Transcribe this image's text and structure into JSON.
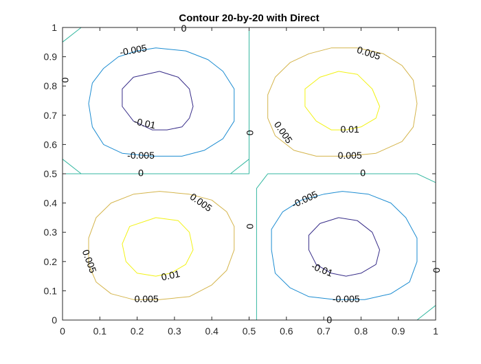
{
  "chart_data": {
    "type": "contour",
    "title": "Contour 20-by-20 with Direct",
    "xlabel": "",
    "ylabel": "",
    "xlim": [
      0,
      1
    ],
    "ylim": [
      0,
      1
    ],
    "x_ticks": [
      0,
      0.1,
      0.2,
      0.3,
      0.4,
      0.5,
      0.6,
      0.7,
      0.8,
      0.9,
      1
    ],
    "y_ticks": [
      0,
      0.1,
      0.2,
      0.3,
      0.4,
      0.5,
      0.6,
      0.7,
      0.8,
      0.9,
      1
    ],
    "x_tick_labels": [
      "0",
      "0.1",
      "0.2",
      "0.3",
      "0.4",
      "0.5",
      "0.6",
      "0.7",
      "0.8",
      "0.9",
      "1"
    ],
    "y_tick_labels": [
      "0",
      "0.1",
      "0.2",
      "0.3",
      "0.4",
      "0.5",
      "0.6",
      "0.7",
      "0.8",
      "0.9",
      "1"
    ],
    "grid": false,
    "box": true,
    "levels": [
      -0.01,
      -0.005,
      0,
      0.005,
      0.01
    ],
    "level_colors": {
      "-0.01": "#352a87",
      "-0.005": "#1a8bd1",
      "0": "#33b7a0",
      "0.005": "#d4b44a",
      "0.01": "#f2f211"
    },
    "contours": [
      {
        "level": 0,
        "points": [
          [
            0.0,
            0.95
          ],
          [
            0.05,
            1.0
          ],
          [
            0.5,
            1.0
          ],
          [
            0.5,
            0.5
          ],
          [
            0.0,
            0.5
          ]
        ]
      },
      {
        "level": 0,
        "points": [
          [
            0.5,
            0.95
          ],
          [
            0.5,
            0.55
          ],
          [
            0.45,
            0.5
          ],
          [
            0.05,
            0.5
          ],
          [
            0.0,
            0.55
          ]
        ]
      },
      {
        "level": 0,
        "points": [
          [
            0.52,
            0.0
          ],
          [
            0.52,
            0.45
          ],
          [
            0.55,
            0.5
          ],
          [
            0.95,
            0.5
          ],
          [
            1.0,
            0.47
          ]
        ]
      },
      {
        "level": 0,
        "points": [
          [
            1.0,
            0.05
          ],
          [
            0.95,
            0.0
          ],
          [
            0.52,
            0.0
          ]
        ]
      },
      {
        "level": -0.005,
        "points": [
          [
            0.25,
            0.93
          ],
          [
            0.33,
            0.92
          ],
          [
            0.39,
            0.89
          ],
          [
            0.43,
            0.85
          ],
          [
            0.46,
            0.79
          ],
          [
            0.46,
            0.68
          ],
          [
            0.43,
            0.62
          ],
          [
            0.38,
            0.58
          ],
          [
            0.32,
            0.56
          ],
          [
            0.24,
            0.56
          ],
          [
            0.16,
            0.57
          ],
          [
            0.11,
            0.6
          ],
          [
            0.08,
            0.66
          ],
          [
            0.07,
            0.74
          ],
          [
            0.08,
            0.81
          ],
          [
            0.11,
            0.86
          ],
          [
            0.15,
            0.9
          ],
          [
            0.2,
            0.92
          ],
          [
            0.25,
            0.93
          ]
        ]
      },
      {
        "level": -0.01,
        "points": [
          [
            0.26,
            0.85
          ],
          [
            0.31,
            0.83
          ],
          [
            0.34,
            0.79
          ],
          [
            0.35,
            0.73
          ],
          [
            0.34,
            0.69
          ],
          [
            0.32,
            0.66
          ],
          [
            0.28,
            0.65
          ],
          [
            0.24,
            0.65
          ],
          [
            0.19,
            0.68
          ],
          [
            0.16,
            0.73
          ],
          [
            0.16,
            0.79
          ],
          [
            0.19,
            0.83
          ],
          [
            0.26,
            0.85
          ]
        ]
      },
      {
        "level": 0.005,
        "points": [
          [
            0.72,
            0.93
          ],
          [
            0.79,
            0.93
          ],
          [
            0.86,
            0.91
          ],
          [
            0.91,
            0.87
          ],
          [
            0.94,
            0.82
          ],
          [
            0.95,
            0.74
          ],
          [
            0.94,
            0.66
          ],
          [
            0.91,
            0.61
          ],
          [
            0.84,
            0.57
          ],
          [
            0.76,
            0.56
          ],
          [
            0.68,
            0.56
          ],
          [
            0.62,
            0.58
          ],
          [
            0.57,
            0.63
          ],
          [
            0.55,
            0.69
          ],
          [
            0.55,
            0.77
          ],
          [
            0.57,
            0.83
          ],
          [
            0.61,
            0.88
          ],
          [
            0.66,
            0.91
          ],
          [
            0.72,
            0.93
          ]
        ]
      },
      {
        "level": 0.01,
        "points": [
          [
            0.74,
            0.85
          ],
          [
            0.79,
            0.84
          ],
          [
            0.83,
            0.79
          ],
          [
            0.85,
            0.73
          ],
          [
            0.84,
            0.69
          ],
          [
            0.8,
            0.66
          ],
          [
            0.76,
            0.65
          ],
          [
            0.72,
            0.65
          ],
          [
            0.68,
            0.68
          ],
          [
            0.65,
            0.73
          ],
          [
            0.65,
            0.79
          ],
          [
            0.69,
            0.83
          ],
          [
            0.74,
            0.85
          ]
        ]
      },
      {
        "level": 0.005,
        "points": [
          [
            0.26,
            0.44
          ],
          [
            0.34,
            0.43
          ],
          [
            0.4,
            0.41
          ],
          [
            0.44,
            0.37
          ],
          [
            0.46,
            0.32
          ],
          [
            0.46,
            0.24
          ],
          [
            0.44,
            0.17
          ],
          [
            0.4,
            0.12
          ],
          [
            0.34,
            0.08
          ],
          [
            0.26,
            0.07
          ],
          [
            0.19,
            0.07
          ],
          [
            0.13,
            0.09
          ],
          [
            0.09,
            0.13
          ],
          [
            0.07,
            0.19
          ],
          [
            0.07,
            0.28
          ],
          [
            0.09,
            0.35
          ],
          [
            0.13,
            0.4
          ],
          [
            0.19,
            0.43
          ],
          [
            0.26,
            0.44
          ]
        ]
      },
      {
        "level": 0.01,
        "points": [
          [
            0.25,
            0.35
          ],
          [
            0.31,
            0.34
          ],
          [
            0.34,
            0.3
          ],
          [
            0.35,
            0.24
          ],
          [
            0.33,
            0.19
          ],
          [
            0.29,
            0.16
          ],
          [
            0.25,
            0.15
          ],
          [
            0.2,
            0.16
          ],
          [
            0.17,
            0.2
          ],
          [
            0.16,
            0.26
          ],
          [
            0.18,
            0.32
          ],
          [
            0.25,
            0.35
          ]
        ]
      },
      {
        "level": -0.005,
        "points": [
          [
            0.75,
            0.44
          ],
          [
            0.82,
            0.43
          ],
          [
            0.88,
            0.4
          ],
          [
            0.92,
            0.35
          ],
          [
            0.95,
            0.28
          ],
          [
            0.95,
            0.2
          ],
          [
            0.93,
            0.13
          ],
          [
            0.88,
            0.09
          ],
          [
            0.81,
            0.07
          ],
          [
            0.73,
            0.07
          ],
          [
            0.66,
            0.08
          ],
          [
            0.61,
            0.11
          ],
          [
            0.57,
            0.16
          ],
          [
            0.56,
            0.24
          ],
          [
            0.56,
            0.31
          ],
          [
            0.59,
            0.37
          ],
          [
            0.64,
            0.41
          ],
          [
            0.7,
            0.43
          ],
          [
            0.75,
            0.44
          ]
        ]
      },
      {
        "level": -0.01,
        "points": [
          [
            0.74,
            0.35
          ],
          [
            0.79,
            0.34
          ],
          [
            0.83,
            0.3
          ],
          [
            0.85,
            0.24
          ],
          [
            0.84,
            0.19
          ],
          [
            0.8,
            0.16
          ],
          [
            0.76,
            0.15
          ],
          [
            0.72,
            0.16
          ],
          [
            0.68,
            0.19
          ],
          [
            0.66,
            0.24
          ],
          [
            0.66,
            0.29
          ],
          [
            0.69,
            0.33
          ],
          [
            0.74,
            0.35
          ]
        ]
      }
    ],
    "contour_labels": [
      {
        "text": "0",
        "x": 0.325,
        "y": 0.995,
        "angle": 0
      },
      {
        "text": "0",
        "x": 0.005,
        "y": 0.82,
        "angle": 90
      },
      {
        "text": "0",
        "x": 0.21,
        "y": 0.5,
        "angle": 0
      },
      {
        "text": "0",
        "x": 0.5,
        "y": 0.64,
        "angle": 90
      },
      {
        "text": "0",
        "x": 0.5,
        "y": 0.32,
        "angle": 90
      },
      {
        "text": "0",
        "x": 0.805,
        "y": 0.5,
        "angle": 0
      },
      {
        "text": "0",
        "x": 1.0,
        "y": 0.17,
        "angle": 90
      },
      {
        "text": "0",
        "x": 0.715,
        "y": -0.002,
        "angle": 0
      },
      {
        "text": "-0.005",
        "x": 0.19,
        "y": 0.92,
        "angle": -10
      },
      {
        "text": "-0.01",
        "x": 0.22,
        "y": 0.67,
        "angle": 12
      },
      {
        "text": "-0.005",
        "x": 0.21,
        "y": 0.56,
        "angle": 0
      },
      {
        "text": "0.005",
        "x": 0.82,
        "y": 0.91,
        "angle": 18
      },
      {
        "text": "0.01",
        "x": 0.77,
        "y": 0.65,
        "angle": 0
      },
      {
        "text": "0.005",
        "x": 0.59,
        "y": 0.64,
        "angle": 55
      },
      {
        "text": "0.005",
        "x": 0.77,
        "y": 0.56,
        "angle": 0
      },
      {
        "text": "0.005",
        "x": 0.37,
        "y": 0.4,
        "angle": 35
      },
      {
        "text": "0.01",
        "x": 0.29,
        "y": 0.15,
        "angle": -12
      },
      {
        "text": "0.005",
        "x": 0.07,
        "y": 0.2,
        "angle": 70
      },
      {
        "text": "0.005",
        "x": 0.225,
        "y": 0.07,
        "angle": 0
      },
      {
        "text": "-0.005",
        "x": 0.65,
        "y": 0.41,
        "angle": -25
      },
      {
        "text": "-0.01",
        "x": 0.695,
        "y": 0.17,
        "angle": 22
      },
      {
        "text": "-0.005",
        "x": 0.76,
        "y": 0.07,
        "angle": 0
      }
    ]
  }
}
